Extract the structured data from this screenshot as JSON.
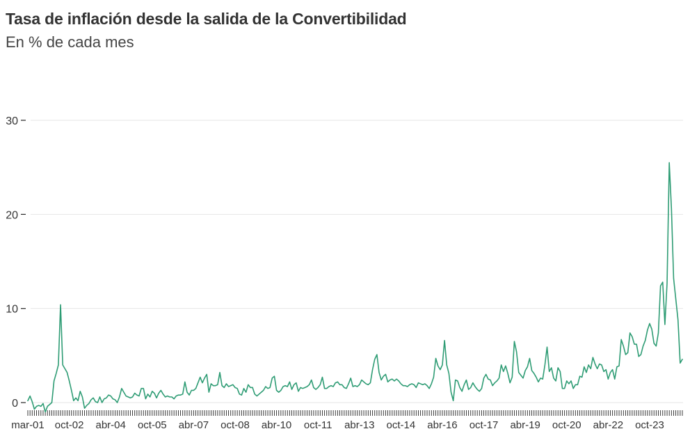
{
  "chart_data": {
    "type": "line",
    "title": "Tasa de inflación desde la salida de la Convertibilidad",
    "subtitle": "En % de cada mes",
    "xlabel": "",
    "ylabel": "",
    "ylim": [
      -1,
      30
    ],
    "yticks": [
      0,
      10,
      20,
      30
    ],
    "grid": true,
    "line_color": "#2e9c74",
    "grid_color": "#e6e6e6",
    "xtick_labels": [
      "mar-01",
      "oct-02",
      "abr-04",
      "oct-05",
      "abr-07",
      "oct-08",
      "abr-10",
      "oct-11",
      "abr-13",
      "oct-14",
      "abr-16",
      "oct-17",
      "abr-19",
      "oct-20",
      "abr-22",
      "oct-23"
    ],
    "series": [
      {
        "x_start": "2001-03",
        "values": [
          0.2,
          0.7,
          0.1,
          -0.7,
          -0.4,
          -0.3,
          -0.4,
          -0.1,
          -1.0,
          -0.4,
          -0.2,
          0.0,
          2.3,
          3.1,
          4.0,
          10.4,
          4.0,
          3.6,
          3.2,
          2.3,
          1.3,
          0.2,
          0.5,
          0.2,
          1.2,
          0.6,
          -0.6,
          -0.3,
          -0.1,
          0.3,
          0.5,
          0.1,
          0.0,
          0.6,
          0.0,
          0.4,
          0.5,
          0.8,
          0.7,
          0.4,
          0.3,
          0.0,
          0.6,
          1.5,
          1.1,
          0.7,
          0.6,
          0.5,
          0.6,
          1.0,
          0.8,
          0.7,
          1.5,
          1.5,
          0.4,
          0.9,
          0.6,
          1.2,
          1.0,
          0.5,
          1.0,
          1.3,
          0.9,
          0.6,
          0.7,
          0.6,
          0.6,
          0.4,
          0.7,
          0.8,
          0.8,
          0.9,
          2.2,
          1.1,
          0.8,
          1.3,
          1.3,
          1.5,
          2.1,
          2.7,
          2.1,
          2.6,
          3.0,
          1.1,
          2.0,
          1.8,
          1.8,
          1.9,
          3.2,
          1.8,
          1.6,
          2.0,
          1.7,
          1.8,
          1.9,
          1.6,
          1.5,
          0.9,
          0.8,
          1.5,
          1.1,
          1.9,
          1.6,
          1.6,
          0.9,
          0.7,
          0.9,
          1.1,
          1.3,
          1.7,
          1.5,
          1.6,
          2.6,
          2.8,
          1.3,
          1.1,
          1.3,
          1.7,
          1.8,
          1.7,
          2.2,
          1.4,
          1.9,
          2.1,
          1.2,
          1.6,
          1.5,
          1.6,
          1.7,
          1.9,
          2.4,
          1.6,
          1.4,
          1.6,
          1.9,
          2.7,
          1.5,
          1.5,
          1.7,
          1.8,
          1.7,
          2.1,
          2.2,
          1.9,
          1.9,
          1.6,
          1.5,
          2.0,
          2.6,
          1.7,
          1.8,
          1.7,
          1.9,
          2.4,
          2.2,
          2.0,
          1.9,
          2.1,
          3.5,
          4.6,
          5.1,
          3.2,
          2.4,
          2.8,
          3.0,
          2.2,
          2.4,
          2.5,
          2.3,
          2.5,
          2.3,
          2.0,
          1.8,
          1.8,
          1.7,
          1.9,
          2.0,
          1.9,
          1.6,
          2.1,
          2.0,
          1.9,
          2.0,
          1.8,
          1.5,
          2.0,
          2.7,
          4.7,
          3.9,
          3.5,
          4.0,
          6.6,
          4.0,
          3.1,
          1.1,
          0.2,
          2.4,
          2.3,
          1.6,
          1.2,
          1.9,
          2.4,
          1.4,
          1.6,
          2.1,
          1.7,
          1.4,
          1.2,
          1.5,
          2.6,
          3.0,
          2.5,
          2.4,
          1.8,
          2.1,
          2.3,
          2.6,
          4.0,
          3.3,
          3.9,
          3.1,
          2.1,
          2.7,
          6.5,
          5.4,
          3.2,
          2.9,
          2.6,
          3.4,
          3.8,
          4.7,
          3.4,
          3.1,
          2.7,
          2.2,
          2.6,
          2.5,
          4.0,
          5.9,
          3.3,
          3.7,
          2.6,
          2.3,
          3.7,
          3.3,
          1.5,
          1.5,
          2.3,
          2.0,
          2.3,
          1.5,
          1.9,
          1.9,
          2.8,
          2.7,
          3.8,
          3.2,
          4.0,
          3.6,
          4.8,
          4.1,
          3.6,
          4.1,
          4.0,
          3.3,
          3.5,
          2.5,
          3.2,
          3.5,
          2.5,
          3.8,
          3.9,
          6.7,
          6.0,
          5.1,
          5.3,
          7.4,
          7.0,
          6.2,
          6.2,
          4.9,
          5.1,
          6.0,
          6.6,
          7.7,
          8.4,
          7.8,
          6.3,
          6.0,
          7.4,
          12.4,
          12.8,
          8.3,
          12.7,
          25.5,
          20.6,
          13.2,
          11.0,
          8.8,
          4.2,
          4.6
        ]
      }
    ]
  }
}
